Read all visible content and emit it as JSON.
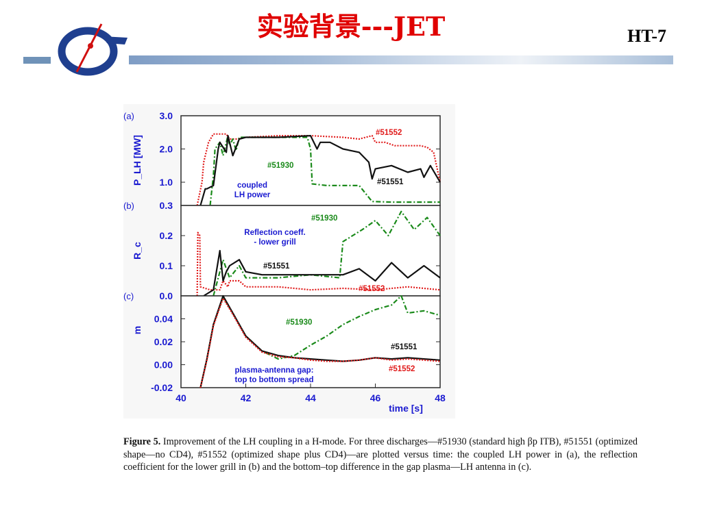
{
  "slide": {
    "title": "实验背景---JET",
    "tag": "HT-7",
    "logo_name": "ipp-logo",
    "caption_label": "Figure 5.",
    "caption_text": "Improvement of the LH coupling in a H-mode. For three discharges—#51930 (standard high βp ITB), #51551 (optimized shape—no CD4), #51552 (optimized shape plus CD4)—are plotted versus time: the coupled LH power in (a), the reflection coefficient for the lower grill in (b) and the bottom–top difference in the gap plasma—LH antenna in (c)."
  },
  "colors": {
    "title": "#e00000",
    "s51930": "#1a8a1a",
    "s51551": "#111111",
    "s51552": "#e01a1a",
    "annotation": "#1a1ad0",
    "axis_text": "#1a1ad0"
  },
  "chart_data": [
    {
      "type": "line",
      "panel_label": "(a)",
      "ylabel": "P_LH [MW]",
      "ylim": [
        0.3,
        3.0
      ],
      "yticks": [
        "3.0",
        "2.0",
        "1.0",
        "0.3"
      ],
      "xlim": [
        40,
        48
      ],
      "annotations": [
        {
          "text": "coupled",
          "color": "annotation"
        },
        {
          "text": "LH power",
          "color": "annotation"
        },
        {
          "text": "#51552",
          "color": "s51552"
        },
        {
          "text": "#51930",
          "color": "s51930"
        },
        {
          "text": "#51551",
          "color": "s51551"
        }
      ],
      "series": [
        {
          "name": "#51552",
          "color": "s51552",
          "style": "dotted",
          "x": [
            40.5,
            40.65,
            40.7,
            40.85,
            41.0,
            41.4,
            41.5,
            41.7,
            42.0,
            43.0,
            44.0,
            45.0,
            45.5,
            45.9,
            46.0,
            46.3,
            46.6,
            47.0,
            47.4,
            47.6,
            47.8,
            48.0
          ],
          "y": [
            0.3,
            1.0,
            1.6,
            2.2,
            2.45,
            2.45,
            2.3,
            2.3,
            2.35,
            2.4,
            2.4,
            2.35,
            2.3,
            2.4,
            2.2,
            2.2,
            2.1,
            2.1,
            2.1,
            2.05,
            1.9,
            1.0
          ]
        },
        {
          "name": "#51930",
          "color": "s51930",
          "style": "dashdot",
          "x": [
            40.9,
            41.0,
            41.05,
            41.2,
            41.3,
            41.45,
            41.5,
            41.6,
            41.7,
            41.8,
            42.0,
            43.0,
            43.9,
            44.0,
            44.05,
            44.5,
            45.0,
            45.5,
            45.9,
            46.5,
            48.0
          ],
          "y": [
            0.3,
            1.2,
            2.0,
            2.2,
            1.8,
            2.4,
            2.1,
            2.3,
            1.95,
            2.35,
            2.35,
            2.35,
            2.35,
            2.0,
            0.95,
            0.9,
            0.9,
            0.9,
            0.42,
            0.4,
            0.4
          ]
        },
        {
          "name": "#51551",
          "color": "s51551",
          "style": "solid",
          "x": [
            40.6,
            40.75,
            40.8,
            41.0,
            41.15,
            41.2,
            41.4,
            41.45,
            41.6,
            41.8,
            42.0,
            43.0,
            44.0,
            44.2,
            44.3,
            44.6,
            45.0,
            45.5,
            45.8,
            45.9,
            46.0,
            46.5,
            47.0,
            47.4,
            47.5,
            47.7,
            48.0
          ],
          "y": [
            0.3,
            0.8,
            0.8,
            0.9,
            2.0,
            2.2,
            1.9,
            2.4,
            1.8,
            2.3,
            2.35,
            2.35,
            2.4,
            2.0,
            2.2,
            2.2,
            2.0,
            1.9,
            1.6,
            1.1,
            1.4,
            1.5,
            1.3,
            1.4,
            1.15,
            1.5,
            1.0
          ]
        }
      ]
    },
    {
      "type": "line",
      "panel_label": "(b)",
      "ylabel": "R_c",
      "ylim": [
        0.0,
        0.3
      ],
      "yticks": [
        "0.2",
        "0.1",
        "0.0"
      ],
      "xlim": [
        40,
        48
      ],
      "annotations": [
        {
          "text": "Reflection coeff.",
          "color": "annotation"
        },
        {
          "text": "- lower grill",
          "color": "annotation"
        },
        {
          "text": "#51930",
          "color": "s51930"
        },
        {
          "text": "#51551",
          "color": "s51551"
        },
        {
          "text": "#51552",
          "color": "s51552"
        }
      ],
      "series": [
        {
          "name": "#51552",
          "color": "s51552",
          "style": "dotted",
          "x": [
            40.5,
            40.52,
            40.58,
            40.6,
            40.9,
            41.2,
            41.3,
            41.45,
            41.5,
            41.8,
            42.0,
            43.0,
            44.0,
            45.0,
            46.0,
            47.0,
            48.0
          ],
          "y": [
            0.0,
            0.21,
            0.2,
            0.03,
            0.02,
            0.02,
            0.05,
            0.03,
            0.05,
            0.05,
            0.03,
            0.03,
            0.02,
            0.025,
            0.02,
            0.03,
            0.02
          ]
        },
        {
          "name": "#51930",
          "color": "s51930",
          "style": "dashdot",
          "x": [
            41.0,
            41.3,
            41.5,
            41.8,
            42.0,
            43.0,
            44.0,
            44.9,
            45.0,
            45.3,
            45.6,
            46.0,
            46.4,
            46.8,
            47.2,
            47.6,
            48.0
          ],
          "y": [
            0.0,
            0.12,
            0.06,
            0.1,
            0.06,
            0.06,
            0.07,
            0.06,
            0.18,
            0.2,
            0.22,
            0.25,
            0.2,
            0.28,
            0.22,
            0.26,
            0.2
          ]
        },
        {
          "name": "#51551",
          "color": "s51551",
          "style": "solid",
          "x": [
            40.7,
            41.0,
            41.2,
            41.3,
            41.4,
            41.5,
            41.8,
            42.0,
            42.5,
            43.0,
            44.0,
            45.0,
            45.5,
            46.0,
            46.5,
            47.0,
            47.5,
            48.0
          ],
          "y": [
            0.0,
            0.02,
            0.15,
            0.05,
            0.08,
            0.1,
            0.12,
            0.08,
            0.07,
            0.07,
            0.07,
            0.07,
            0.09,
            0.05,
            0.11,
            0.06,
            0.1,
            0.06
          ]
        }
      ]
    },
    {
      "type": "line",
      "panel_label": "(c)",
      "ylabel": "m",
      "ylim": [
        -0.02,
        0.06
      ],
      "yticks": [
        "0.04",
        "0.02",
        "0.00",
        "-0.02"
      ],
      "xlim": [
        40,
        48
      ],
      "xticks": [
        "40",
        "42",
        "44",
        "46",
        "48"
      ],
      "xlabel": "time [s]",
      "annotations": [
        {
          "text": "#51930",
          "color": "s51930"
        },
        {
          "text": "#51551",
          "color": "s51551"
        },
        {
          "text": "plasma-antenna gap:",
          "color": "annotation"
        },
        {
          "text": "top to bottom spread",
          "color": "annotation"
        },
        {
          "text": "#51552",
          "color": "s51552"
        }
      ],
      "series": [
        {
          "name": "#51930",
          "color": "s51930",
          "style": "dashdot",
          "x": [
            40.6,
            40.8,
            41.0,
            41.3,
            41.6,
            42.0,
            42.5,
            43.0,
            43.5,
            44.0,
            44.5,
            45.0,
            45.5,
            46.0,
            46.5,
            46.8,
            47.0,
            47.5,
            48.0
          ],
          "y": [
            -0.02,
            0.005,
            0.035,
            0.059,
            0.045,
            0.025,
            0.012,
            0.005,
            0.008,
            0.017,
            0.025,
            0.035,
            0.042,
            0.048,
            0.052,
            0.06,
            0.045,
            0.047,
            0.043
          ]
        },
        {
          "name": "#51551",
          "color": "s51551",
          "style": "solid",
          "x": [
            40.6,
            40.8,
            41.0,
            41.3,
            41.6,
            42.0,
            42.5,
            43.0,
            43.5,
            44.0,
            44.5,
            45.0,
            45.5,
            46.0,
            46.5,
            47.0,
            47.5,
            48.0
          ],
          "y": [
            -0.02,
            0.005,
            0.035,
            0.06,
            0.045,
            0.025,
            0.012,
            0.008,
            0.006,
            0.005,
            0.004,
            0.003,
            0.004,
            0.006,
            0.005,
            0.006,
            0.005,
            0.004
          ]
        },
        {
          "name": "#51552",
          "color": "s51552",
          "style": "dotted",
          "x": [
            40.6,
            40.8,
            41.0,
            41.3,
            41.6,
            42.0,
            42.5,
            43.0,
            43.5,
            44.0,
            44.5,
            45.0,
            45.5,
            46.0,
            46.5,
            47.0,
            47.5,
            48.0
          ],
          "y": [
            -0.02,
            0.004,
            0.034,
            0.058,
            0.044,
            0.024,
            0.011,
            0.007,
            0.006,
            0.004,
            0.003,
            0.003,
            0.004,
            0.006,
            0.004,
            0.005,
            0.004,
            0.003
          ]
        }
      ]
    }
  ]
}
